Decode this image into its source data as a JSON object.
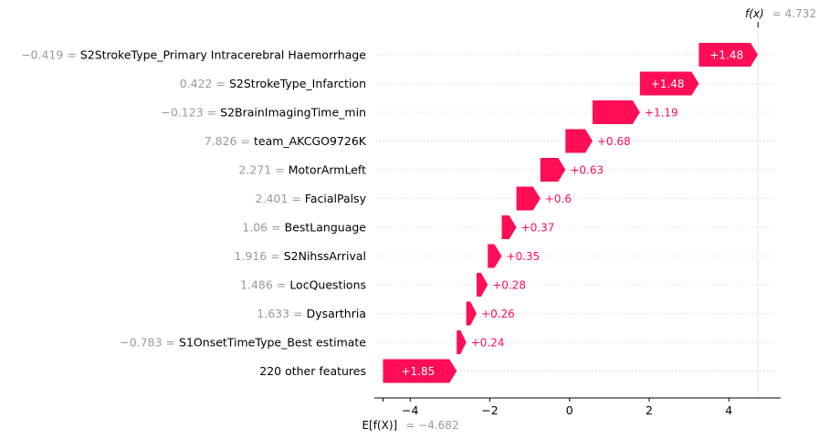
{
  "chart_data": {
    "type": "waterfall",
    "base_value": -4.682,
    "base_value_label": "E[f(X)]",
    "base_value_text": "= −4.682",
    "output_value": 4.732,
    "output_value_label": "f(x)",
    "output_value_text": "= 4.732",
    "xlim": [
      -4.9,
      5.3
    ],
    "xticks": [
      -4,
      -2,
      0,
      2,
      4
    ],
    "xtick_labels": [
      "−4",
      "−2",
      "0",
      "2",
      "4"
    ],
    "positive_color": "#ff0d57",
    "features": [
      {
        "value": "−0.419",
        "name": "S2StrokeType_Primary Intracerebral Haemorrhage",
        "contribution": 1.48,
        "label": "+1.48"
      },
      {
        "value": "0.422",
        "name": "S2StrokeType_Infarction",
        "contribution": 1.48,
        "label": "+1.48"
      },
      {
        "value": "−0.123",
        "name": "S2BrainImagingTime_min",
        "contribution": 1.19,
        "label": "+1.19"
      },
      {
        "value": "7.826",
        "name": "team_AKCGO9726K",
        "contribution": 0.68,
        "label": "+0.68"
      },
      {
        "value": "2.271",
        "name": "MotorArmLeft",
        "contribution": 0.63,
        "label": "+0.63"
      },
      {
        "value": "2.401",
        "name": "FacialPalsy",
        "contribution": 0.6,
        "label": "+0.6"
      },
      {
        "value": "1.06",
        "name": "BestLanguage",
        "contribution": 0.37,
        "label": "+0.37"
      },
      {
        "value": "1.916",
        "name": "S2NihssArrival",
        "contribution": 0.35,
        "label": "+0.35"
      },
      {
        "value": "1.486",
        "name": "LocQuestions",
        "contribution": 0.28,
        "label": "+0.28"
      },
      {
        "value": "1.633",
        "name": "Dysarthria",
        "contribution": 0.26,
        "label": "+0.26"
      },
      {
        "value": "−0.783",
        "name": "S1OnsetTimeType_Best estimate",
        "contribution": 0.24,
        "label": "+0.24"
      },
      {
        "value": "",
        "name": "220 other features",
        "contribution": 1.85,
        "label": "+1.85"
      }
    ]
  }
}
